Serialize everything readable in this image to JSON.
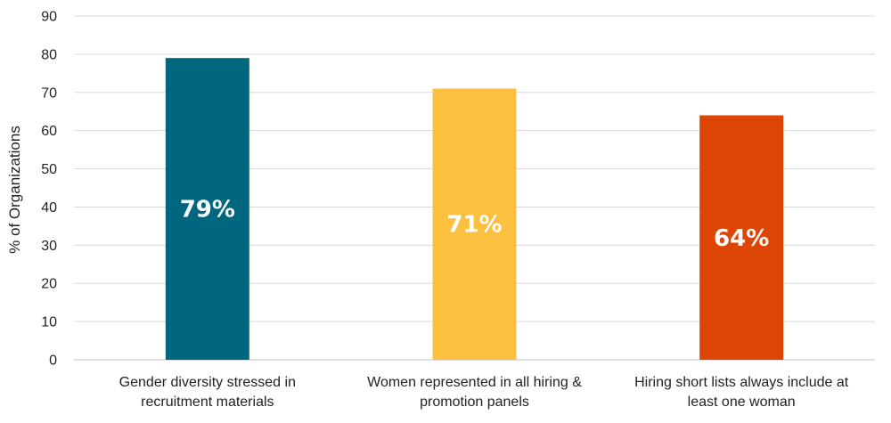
{
  "chart_data": {
    "type": "bar",
    "categories": [
      [
        "Gender diversity stressed in",
        "recruitment materials"
      ],
      [
        "Women represented in all hiring &",
        "promotion panels"
      ],
      [
        "Hiring short lists always include at",
        "least one woman"
      ]
    ],
    "values": [
      79,
      71,
      64
    ],
    "data_labels": [
      "79%",
      "71%",
      "64%"
    ],
    "colors": [
      "#00677f",
      "#fdbf40",
      "#dc4506"
    ],
    "ylabel": "% of Organizations",
    "xlabel": "",
    "ylim": [
      0,
      90
    ],
    "yticks": [
      0,
      10,
      20,
      30,
      40,
      50,
      60,
      70,
      80,
      90
    ],
    "grid": true,
    "legend": "none"
  }
}
